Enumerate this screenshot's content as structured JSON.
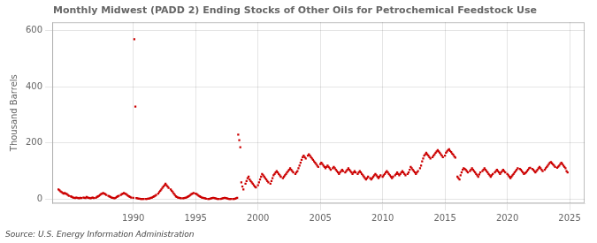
{
  "chart_data": {
    "type": "scatter",
    "title": "Monthly Midwest (PADD 2) Ending Stocks of Other Oils for Petrochemical Feedstock Use",
    "ylabel": "Thousand Barrels",
    "annotations": [
      "Source: U.S. Energy Information Administration"
    ],
    "color": "#cc0000",
    "marker": "square",
    "grid": true,
    "xlim": [
      1983.5,
      2026.2
    ],
    "xticks": [
      1990,
      1995,
      2000,
      2005,
      2010,
      2015,
      2020,
      2025
    ],
    "ylim": [
      -15,
      630
    ],
    "yticks": [
      0,
      200,
      400,
      600
    ],
    "x": [
      1984.0,
      1984.083,
      1984.167,
      1984.25,
      1984.333,
      1984.417,
      1984.5,
      1984.583,
      1984.667,
      1984.75,
      1984.833,
      1985.0,
      1985.083,
      1985.167,
      1985.25,
      1985.333,
      1985.417,
      1985.5,
      1985.583,
      1985.667,
      1985.75,
      1985.833,
      1986.0,
      1986.083,
      1986.167,
      1986.25,
      1986.333,
      1986.417,
      1986.5,
      1986.583,
      1986.667,
      1986.75,
      1986.833,
      1987.0,
      1987.083,
      1987.167,
      1987.25,
      1987.333,
      1987.417,
      1987.5,
      1987.583,
      1987.667,
      1987.75,
      1987.833,
      1988.0,
      1988.083,
      1988.167,
      1988.25,
      1988.333,
      1988.417,
      1988.5,
      1988.583,
      1988.667,
      1988.75,
      1988.833,
      1989.0,
      1989.083,
      1989.167,
      1989.25,
      1989.333,
      1989.417,
      1989.5,
      1989.583,
      1989.667,
      1989.75,
      1989.833,
      1990.0,
      1990.083,
      1990.167,
      1990.25,
      1990.333,
      1990.417,
      1990.5,
      1990.583,
      1990.667,
      1990.75,
      1990.833,
      1991.0,
      1991.083,
      1991.167,
      1991.25,
      1991.333,
      1991.417,
      1991.5,
      1991.583,
      1991.667,
      1991.75,
      1991.833,
      1992.0,
      1992.083,
      1992.167,
      1992.25,
      1992.333,
      1992.417,
      1992.5,
      1992.583,
      1992.667,
      1992.75,
      1992.833,
      1993.0,
      1993.083,
      1993.167,
      1993.25,
      1993.333,
      1993.417,
      1993.5,
      1993.583,
      1993.667,
      1993.75,
      1993.833,
      1994.0,
      1994.083,
      1994.167,
      1994.25,
      1994.333,
      1994.417,
      1994.5,
      1994.583,
      1994.667,
      1994.75,
      1994.833,
      1995.0,
      1995.083,
      1995.167,
      1995.25,
      1995.333,
      1995.417,
      1995.5,
      1995.583,
      1995.667,
      1995.75,
      1995.833,
      1996.0,
      1996.083,
      1996.167,
      1996.25,
      1996.333,
      1996.417,
      1996.5,
      1996.583,
      1996.667,
      1996.75,
      1996.833,
      1997.0,
      1997.083,
      1997.167,
      1997.25,
      1997.333,
      1997.417,
      1997.5,
      1997.583,
      1997.667,
      1997.75,
      1997.833,
      1998.0,
      1998.083,
      1998.167,
      1998.25,
      1998.333,
      1998.417,
      1998.5,
      1998.583,
      1998.667,
      1998.75,
      1998.833,
      1999.0,
      1999.083,
      1999.167,
      1999.25,
      1999.333,
      1999.417,
      1999.5,
      1999.583,
      1999.667,
      1999.75,
      1999.833,
      2000.0,
      2000.083,
      2000.167,
      2000.25,
      2000.333,
      2000.417,
      2000.5,
      2000.583,
      2000.667,
      2000.75,
      2000.833,
      2001.0,
      2001.083,
      2001.167,
      2001.25,
      2001.333,
      2001.417,
      2001.5,
      2001.583,
      2001.667,
      2001.75,
      2001.833,
      2002.0,
      2002.083,
      2002.167,
      2002.25,
      2002.333,
      2002.417,
      2002.5,
      2002.583,
      2002.667,
      2002.75,
      2002.833,
      2003.0,
      2003.083,
      2003.167,
      2003.25,
      2003.333,
      2003.417,
      2003.5,
      2003.583,
      2003.667,
      2003.75,
      2003.833,
      2004.0,
      2004.083,
      2004.167,
      2004.25,
      2004.333,
      2004.417,
      2004.5,
      2004.583,
      2004.667,
      2004.75,
      2004.833,
      2005.0,
      2005.083,
      2005.167,
      2005.25,
      2005.333,
      2005.417,
      2005.5,
      2005.583,
      2005.667,
      2005.75,
      2005.833,
      2006.0,
      2006.083,
      2006.167,
      2006.25,
      2006.333,
      2006.417,
      2006.5,
      2006.583,
      2006.667,
      2006.75,
      2006.833,
      2007.0,
      2007.083,
      2007.167,
      2007.25,
      2007.333,
      2007.417,
      2007.5,
      2007.583,
      2007.667,
      2007.75,
      2007.833,
      2008.0,
      2008.083,
      2008.167,
      2008.25,
      2008.333,
      2008.417,
      2008.5,
      2008.583,
      2008.667,
      2008.75,
      2008.833,
      2009.0,
      2009.083,
      2009.167,
      2009.25,
      2009.333,
      2009.417,
      2009.5,
      2009.583,
      2009.667,
      2009.75,
      2009.833,
      2010.0,
      2010.083,
      2010.167,
      2010.25,
      2010.333,
      2010.417,
      2010.5,
      2010.583,
      2010.667,
      2010.75,
      2010.833,
      2011.0,
      2011.083,
      2011.167,
      2011.25,
      2011.333,
      2011.417,
      2011.5,
      2011.583,
      2011.667,
      2011.75,
      2011.833,
      2012.0,
      2012.083,
      2012.167,
      2012.25,
      2012.333,
      2012.417,
      2012.5,
      2012.583,
      2012.667,
      2012.75,
      2012.833,
      2013.0,
      2013.083,
      2013.167,
      2013.25,
      2013.333,
      2013.417,
      2013.5,
      2013.583,
      2013.667,
      2013.75,
      2013.833,
      2014.0,
      2014.083,
      2014.167,
      2014.25,
      2014.333,
      2014.417,
      2014.5,
      2014.583,
      2014.667,
      2014.75,
      2014.833,
      2015.0,
      2015.083,
      2015.167,
      2015.25,
      2015.333,
      2015.417,
      2015.5,
      2015.583,
      2015.667,
      2015.75,
      2015.833,
      2016.0,
      2016.083,
      2016.167,
      2016.25,
      2016.333,
      2016.417,
      2016.5,
      2016.583,
      2016.667,
      2016.75,
      2016.833,
      2017.0,
      2017.083,
      2017.167,
      2017.25,
      2017.333,
      2017.417,
      2017.5,
      2017.583,
      2017.667,
      2017.75,
      2017.833,
      2018.0,
      2018.083,
      2018.167,
      2018.25,
      2018.333,
      2018.417,
      2018.5,
      2018.583,
      2018.667,
      2018.75,
      2018.833,
      2019.0,
      2019.083,
      2019.167,
      2019.25,
      2019.333,
      2019.417,
      2019.5,
      2019.583,
      2019.667,
      2019.75,
      2019.833,
      2020.0,
      2020.083,
      2020.167,
      2020.25,
      2020.333,
      2020.417,
      2020.5,
      2020.583,
      2020.667,
      2020.75,
      2020.833,
      2021.0,
      2021.083,
      2021.167,
      2021.25,
      2021.333,
      2021.417,
      2021.5,
      2021.583,
      2021.667,
      2021.75,
      2021.833,
      2022.0,
      2022.083,
      2022.167,
      2022.25,
      2022.333,
      2022.417,
      2022.5,
      2022.583,
      2022.667,
      2022.75,
      2022.833,
      2023.0,
      2023.083,
      2023.167,
      2023.25,
      2023.333,
      2023.417,
      2023.5,
      2023.583,
      2023.667,
      2023.75,
      2023.833,
      2024.0,
      2024.083,
      2024.167,
      2024.25,
      2024.333,
      2024.417,
      2024.5,
      2024.583,
      2024.667,
      2024.75,
      2024.833
    ],
    "values": [
      35,
      32,
      28,
      25,
      22,
      20,
      22,
      20,
      18,
      15,
      12,
      10,
      8,
      6,
      5,
      4,
      6,
      5,
      4,
      3,
      5,
      4,
      6,
      5,
      4,
      8,
      6,
      5,
      4,
      3,
      5,
      6,
      4,
      5,
      8,
      10,
      12,
      15,
      18,
      20,
      22,
      20,
      18,
      15,
      12,
      10,
      8,
      6,
      5,
      4,
      3,
      5,
      8,
      10,
      12,
      15,
      18,
      20,
      22,
      20,
      18,
      15,
      12,
      10,
      8,
      6,
      5,
      570,
      330,
      4,
      3,
      2,
      2,
      1,
      1,
      1,
      1,
      1,
      1,
      2,
      2,
      3,
      5,
      6,
      8,
      10,
      12,
      15,
      20,
      25,
      30,
      35,
      40,
      45,
      50,
      55,
      50,
      45,
      40,
      35,
      30,
      25,
      20,
      15,
      10,
      8,
      6,
      5,
      4,
      3,
      3,
      4,
      5,
      6,
      8,
      10,
      12,
      15,
      18,
      20,
      22,
      20,
      18,
      15,
      12,
      10,
      8,
      6,
      5,
      4,
      3,
      2,
      1,
      1,
      2,
      3,
      4,
      5,
      4,
      3,
      2,
      1,
      1,
      1,
      2,
      3,
      4,
      5,
      4,
      3,
      2,
      1,
      1,
      1,
      1,
      1,
      2,
      3,
      5,
      230,
      210,
      185,
      60,
      45,
      35,
      55,
      65,
      75,
      80,
      70,
      65,
      60,
      55,
      50,
      45,
      42,
      50,
      60,
      70,
      80,
      90,
      85,
      80,
      75,
      70,
      65,
      60,
      55,
      65,
      75,
      85,
      90,
      95,
      100,
      95,
      90,
      85,
      80,
      75,
      80,
      85,
      90,
      95,
      100,
      105,
      110,
      105,
      100,
      95,
      90,
      95,
      100,
      110,
      120,
      130,
      140,
      150,
      155,
      150,
      145,
      155,
      160,
      155,
      150,
      145,
      140,
      135,
      130,
      125,
      120,
      115,
      125,
      130,
      125,
      120,
      115,
      110,
      115,
      120,
      115,
      110,
      105,
      110,
      115,
      110,
      105,
      100,
      95,
      90,
      95,
      100,
      105,
      100,
      95,
      100,
      105,
      110,
      105,
      100,
      95,
      90,
      95,
      100,
      95,
      90,
      95,
      100,
      95,
      90,
      85,
      80,
      75,
      70,
      75,
      80,
      75,
      70,
      75,
      80,
      85,
      90,
      85,
      80,
      75,
      80,
      85,
      80,
      85,
      90,
      95,
      100,
      95,
      90,
      85,
      80,
      75,
      80,
      85,
      90,
      95,
      90,
      85,
      90,
      95,
      100,
      95,
      90,
      85,
      90,
      95,
      105,
      115,
      110,
      105,
      100,
      95,
      90,
      95,
      100,
      110,
      120,
      135,
      145,
      155,
      160,
      165,
      160,
      155,
      150,
      145,
      150,
      155,
      160,
      165,
      170,
      175,
      170,
      165,
      160,
      155,
      150,
      155,
      165,
      170,
      175,
      178,
      172,
      168,
      162,
      158,
      152,
      148,
      80,
      75,
      70,
      85,
      95,
      105,
      110,
      108,
      105,
      100,
      95,
      100,
      105,
      110,
      105,
      100,
      95,
      90,
      85,
      80,
      88,
      95,
      100,
      105,
      110,
      105,
      100,
      95,
      90,
      85,
      80,
      85,
      90,
      95,
      100,
      105,
      100,
      95,
      90,
      95,
      100,
      105,
      100,
      95,
      90,
      85,
      80,
      75,
      80,
      85,
      90,
      95,
      100,
      105,
      110,
      108,
      105,
      100,
      95,
      90,
      92,
      95,
      100,
      105,
      110,
      112,
      108,
      105,
      100,
      95,
      100,
      105,
      110,
      115,
      110,
      105,
      100,
      105,
      110,
      115,
      120,
      125,
      130,
      132,
      128,
      124,
      120,
      115,
      112,
      116,
      120,
      125,
      130,
      125,
      120,
      115,
      110,
      100,
      95
    ]
  }
}
